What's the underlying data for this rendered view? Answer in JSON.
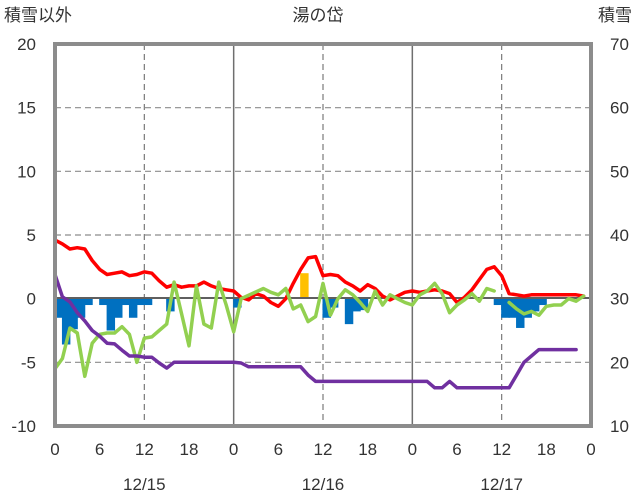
{
  "chart_data": {
    "type": "line",
    "title": "湯の岱",
    "y_left_label": "積雪以外",
    "y_right_label": "積雪",
    "y_left": {
      "min": -10,
      "max": 20,
      "ticks": [
        "-10",
        "-5",
        "0",
        "5",
        "10",
        "15",
        "20"
      ]
    },
    "y_right": {
      "min": 10,
      "max": 70,
      "ticks": [
        "10",
        "20",
        "30",
        "40",
        "50",
        "60",
        "70"
      ]
    },
    "x_hour_range": [
      0,
      72
    ],
    "x_ticks": [
      "0",
      "6",
      "12",
      "18",
      "0",
      "6",
      "12",
      "18",
      "0",
      "6",
      "12",
      "18",
      "0"
    ],
    "date_labels": [
      "12/15",
      "12/16",
      "12/17"
    ],
    "grid": "dashed verticals every 12h, solid at day boundaries",
    "legend": "none",
    "series": [
      {
        "axis": "left",
        "kind": "line",
        "color": "#ff0000",
        "points": [
          [
            0,
            4.6
          ],
          [
            1,
            4.3
          ],
          [
            2,
            3.9
          ],
          [
            3,
            4.0
          ],
          [
            4,
            3.9
          ],
          [
            5,
            3.0
          ],
          [
            6,
            2.3
          ],
          [
            7,
            1.9
          ],
          [
            8,
            2.0
          ],
          [
            9,
            2.1
          ],
          [
            10,
            1.8
          ],
          [
            11,
            1.9
          ],
          [
            12,
            2.1
          ],
          [
            13,
            2.0
          ],
          [
            14,
            1.4
          ],
          [
            15,
            0.9
          ],
          [
            16,
            1.1
          ],
          [
            17,
            0.9
          ],
          [
            18,
            1.0
          ],
          [
            19,
            1.0
          ],
          [
            20,
            1.3
          ],
          [
            21,
            1.0
          ],
          [
            22,
            0.8
          ],
          [
            23,
            0.7
          ],
          [
            24,
            0.6
          ],
          [
            25,
            0.1
          ],
          [
            26,
            -0.1
          ],
          [
            27,
            0.4
          ],
          [
            28,
            0.2
          ],
          [
            29,
            -0.3
          ],
          [
            30,
            -0.6
          ],
          [
            31,
            0.0
          ],
          [
            32,
            1.2
          ],
          [
            33,
            2.3
          ],
          [
            34,
            3.2
          ],
          [
            35,
            3.3
          ],
          [
            36,
            1.8
          ],
          [
            37,
            1.9
          ],
          [
            38,
            1.8
          ],
          [
            39,
            1.3
          ],
          [
            40,
            1.0
          ],
          [
            41,
            0.6
          ],
          [
            42,
            1.1
          ],
          [
            43,
            0.8
          ],
          [
            44,
            0.2
          ],
          [
            45,
            -0.1
          ],
          [
            46,
            0.2
          ],
          [
            47,
            0.5
          ],
          [
            48,
            0.6
          ],
          [
            49,
            0.5
          ],
          [
            50,
            0.6
          ],
          [
            51,
            0.7
          ],
          [
            52,
            0.6
          ],
          [
            53,
            0.4
          ],
          [
            54,
            -0.3
          ],
          [
            55,
            0.1
          ],
          [
            56,
            0.7
          ],
          [
            57,
            1.5
          ],
          [
            58,
            2.3
          ],
          [
            59,
            2.5
          ],
          [
            60,
            1.8
          ],
          [
            61,
            0.4
          ],
          [
            62,
            0.3
          ],
          [
            63,
            0.2
          ],
          [
            64,
            0.3
          ],
          [
            65,
            0.3
          ],
          [
            66,
            0.3
          ],
          [
            67,
            0.3
          ],
          [
            68,
            0.3
          ],
          [
            69,
            0.3
          ],
          [
            70,
            0.3
          ],
          [
            71,
            0.2
          ]
        ]
      },
      {
        "axis": "left",
        "kind": "line",
        "color": "#92d050",
        "points": [
          [
            0,
            -5.5
          ],
          [
            1,
            -4.7
          ],
          [
            2,
            -2.3
          ],
          [
            3,
            -2.7
          ],
          [
            4,
            -6.1
          ],
          [
            5,
            -3.5
          ],
          [
            6,
            -2.8
          ],
          [
            7,
            -2.7
          ],
          [
            8,
            -2.7
          ],
          [
            9,
            -2.2
          ],
          [
            10,
            -2.8
          ],
          [
            11,
            -5.0
          ],
          [
            12,
            -3.1
          ],
          [
            13,
            -3.0
          ],
          [
            14,
            -2.5
          ],
          [
            15,
            -2.0
          ],
          [
            16,
            1.3
          ],
          [
            17,
            -1.2
          ],
          [
            18,
            -3.7
          ],
          [
            19,
            1.0
          ],
          [
            20,
            -2.0
          ],
          [
            21,
            -2.3
          ],
          [
            22,
            1.3
          ],
          [
            23,
            -0.5
          ],
          [
            24,
            -2.6
          ],
          [
            25,
            0.0
          ],
          [
            28,
            0.8
          ],
          [
            29,
            0.5
          ],
          [
            30,
            0.3
          ],
          [
            31,
            0.8
          ],
          [
            32,
            -0.8
          ],
          [
            33,
            -0.5
          ],
          [
            34,
            -1.8
          ],
          [
            35,
            -1.4
          ],
          [
            36,
            1.2
          ],
          [
            37,
            -1.3
          ],
          [
            38,
            0.0
          ],
          [
            39,
            0.7
          ],
          [
            40,
            0.3
          ],
          [
            41,
            -0.3
          ],
          [
            42,
            -1.0
          ],
          [
            43,
            0.6
          ],
          [
            44,
            -0.5
          ],
          [
            45,
            0.3
          ],
          [
            46,
            0.0
          ],
          [
            47,
            -0.3
          ],
          [
            48,
            -0.5
          ],
          [
            49,
            0.3
          ],
          [
            50,
            0.6
          ],
          [
            51,
            1.2
          ],
          [
            52,
            0.4
          ],
          [
            53,
            -1.1
          ],
          [
            54,
            -0.5
          ],
          [
            55,
            -0.1
          ],
          [
            56,
            0.4
          ],
          [
            57,
            -0.2
          ],
          [
            58,
            0.8
          ],
          [
            59,
            0.6
          ]
        ]
      },
      {
        "axis": "left",
        "kind": "line",
        "color": "#92d050",
        "points": [
          [
            61,
            -0.3
          ],
          [
            62,
            -0.8
          ],
          [
            63,
            -1.2
          ],
          [
            64,
            -1.0
          ],
          [
            65,
            -1.3
          ],
          [
            66,
            -0.6
          ],
          [
            67,
            -0.5
          ],
          [
            68,
            -0.5
          ],
          [
            69,
            0.0
          ],
          [
            70,
            -0.2
          ],
          [
            71,
            0.2
          ]
        ]
      },
      {
        "axis": "right",
        "kind": "line",
        "color": "#7030a0",
        "points": [
          [
            0,
            33.8
          ],
          [
            1,
            30.3
          ],
          [
            2,
            29.5
          ],
          [
            3,
            27.8
          ],
          [
            4,
            26.5
          ],
          [
            5,
            25.0
          ],
          [
            6,
            24.1
          ],
          [
            7,
            23.0
          ],
          [
            8,
            22.9
          ],
          [
            9,
            21.9
          ],
          [
            10,
            21.0
          ],
          [
            11,
            21.0
          ],
          [
            12,
            20.8
          ],
          [
            13,
            20.8
          ],
          [
            14,
            19.9
          ],
          [
            15,
            19.1
          ],
          [
            16,
            20.0
          ],
          [
            17,
            20.0
          ],
          [
            18,
            20.0
          ],
          [
            19,
            20.0
          ],
          [
            20,
            20.0
          ],
          [
            21,
            20.0
          ],
          [
            22,
            20.0
          ],
          [
            23,
            20.0
          ],
          [
            24,
            20.0
          ],
          [
            25,
            19.9
          ],
          [
            26,
            19.3
          ],
          [
            27,
            19.3
          ],
          [
            28,
            19.3
          ],
          [
            29,
            19.3
          ],
          [
            30,
            19.3
          ],
          [
            31,
            19.3
          ],
          [
            32,
            19.3
          ],
          [
            33,
            19.3
          ],
          [
            34,
            18.0
          ],
          [
            35,
            17.0
          ],
          [
            36,
            17.0
          ],
          [
            37,
            17.0
          ],
          [
            38,
            17.0
          ],
          [
            39,
            17.0
          ],
          [
            40,
            17.0
          ],
          [
            41,
            17.0
          ],
          [
            42,
            17.0
          ],
          [
            43,
            17.0
          ],
          [
            44,
            17.0
          ],
          [
            45,
            17.0
          ],
          [
            46,
            17.0
          ],
          [
            47,
            17.0
          ],
          [
            48,
            17.0
          ],
          [
            49,
            17.0
          ],
          [
            50,
            17.0
          ],
          [
            51,
            16.0
          ],
          [
            52,
            16.0
          ],
          [
            53,
            17.0
          ],
          [
            54,
            16.0
          ],
          [
            55,
            16.0
          ],
          [
            56,
            16.0
          ],
          [
            57,
            16.0
          ],
          [
            58,
            16.0
          ],
          [
            59,
            16.0
          ],
          [
            60,
            16.0
          ],
          [
            61,
            16.0
          ],
          [
            62,
            18.0
          ],
          [
            63,
            20.0
          ],
          [
            64,
            21.0
          ],
          [
            65,
            22.0
          ],
          [
            66,
            22.0
          ],
          [
            67,
            22.0
          ],
          [
            68,
            22.0
          ],
          [
            69,
            22.0
          ],
          [
            70,
            22.0
          ]
        ]
      },
      {
        "axis": "left",
        "kind": "bar",
        "color": "#0070c0",
        "points": [
          [
            0,
            -1.5
          ],
          [
            1,
            -3.6
          ],
          [
            2,
            -2.4
          ],
          [
            3,
            -1.5
          ],
          [
            4,
            -0.5
          ],
          [
            6,
            -0.5
          ],
          [
            7,
            -2.5
          ],
          [
            8,
            -1.5
          ],
          [
            9,
            -0.5
          ],
          [
            10,
            -1.5
          ],
          [
            11,
            -0.5
          ],
          [
            12,
            -0.5
          ],
          [
            15,
            -1.0
          ],
          [
            24,
            -0.7
          ],
          [
            36,
            -1.5
          ],
          [
            37,
            -0.7
          ],
          [
            39,
            -2.0
          ],
          [
            40,
            -1.0
          ],
          [
            41,
            -0.9
          ],
          [
            59,
            -0.5
          ],
          [
            60,
            -1.5
          ],
          [
            61,
            -1.5
          ],
          [
            62,
            -2.3
          ],
          [
            63,
            -1.5
          ],
          [
            64,
            -1.0
          ],
          [
            65,
            -0.5
          ]
        ]
      },
      {
        "axis": "left",
        "kind": "bar",
        "color": "#ffc000",
        "points": [
          [
            33,
            2.0
          ]
        ]
      }
    ]
  }
}
